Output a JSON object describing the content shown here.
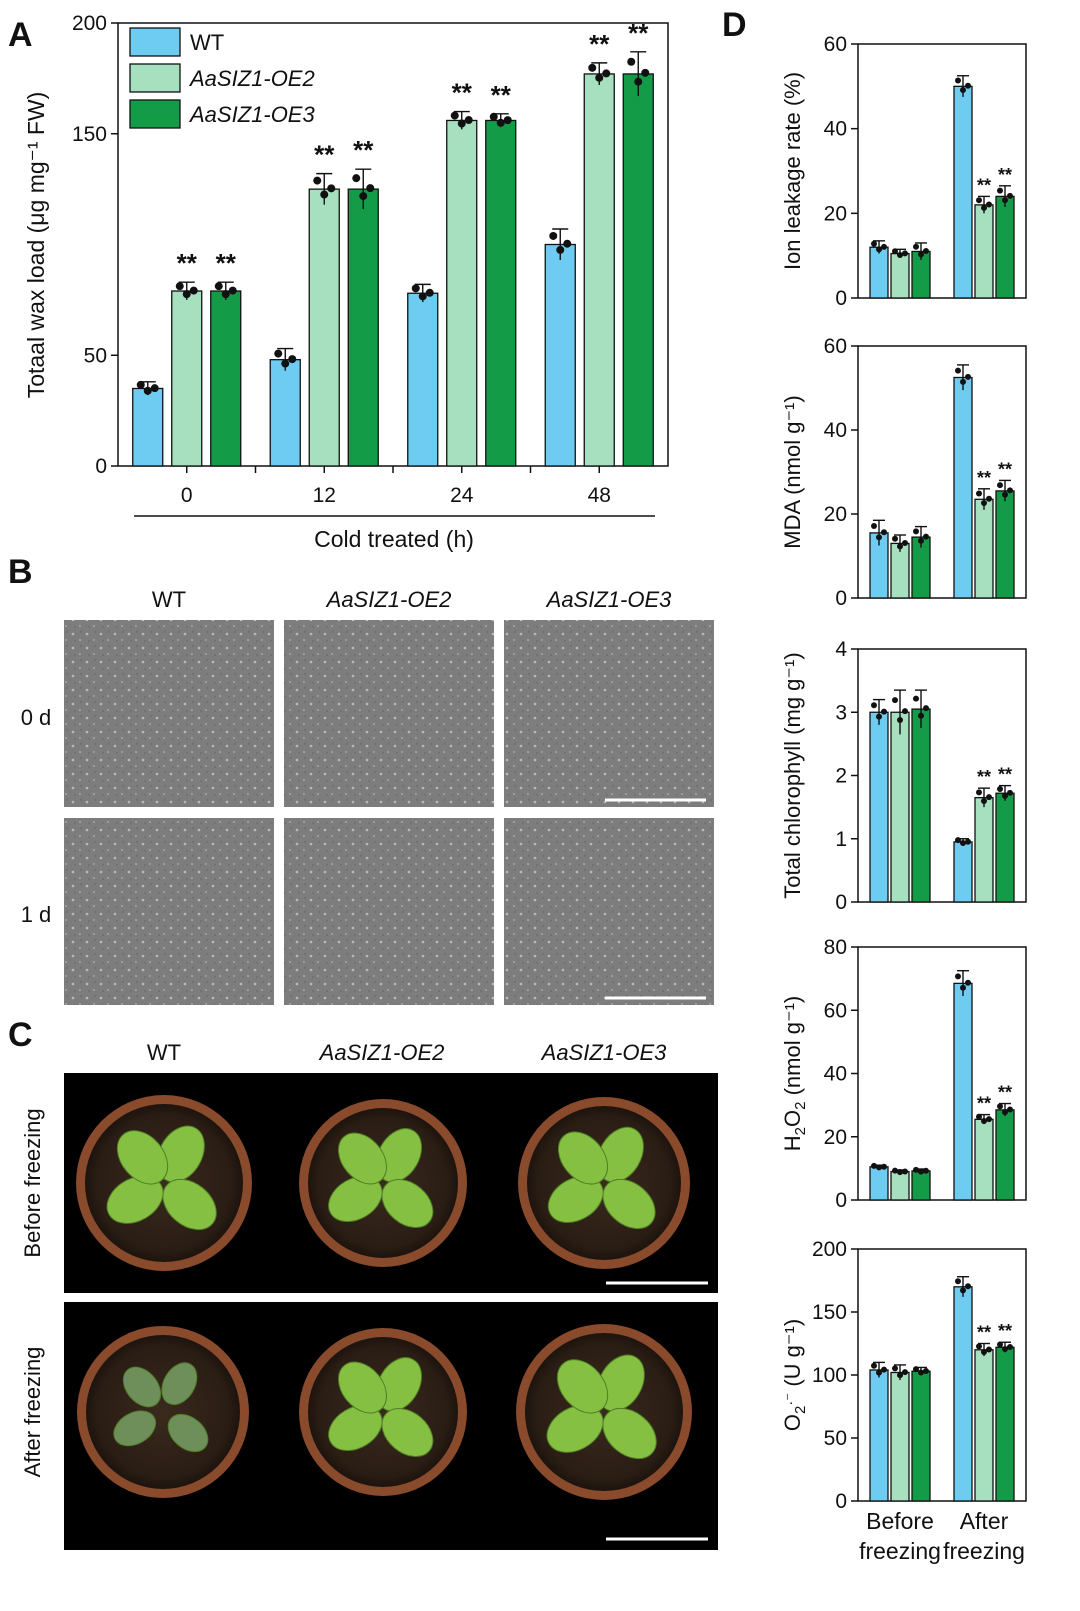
{
  "colors": {
    "wt": "#6ECCF3",
    "oe2": "#A6E0BE",
    "oe3": "#149B48"
  },
  "panel_labels": {
    "a": "A",
    "b": "B",
    "c": "C",
    "d": "D"
  },
  "panel_b": {
    "cols": [
      "WT",
      "AaSIZ1-OE2",
      "AaSIZ1-OE3"
    ],
    "rows": [
      "0 d",
      "1 d"
    ]
  },
  "panel_c": {
    "cols": [
      "WT",
      "AaSIZ1-OE2",
      "AaSIZ1-OE3"
    ],
    "rows": [
      "Before freezing",
      "After freezing"
    ]
  },
  "chart_data": [
    {
      "id": "A",
      "type": "bar",
      "xlabel": "Cold treated (h)",
      "ylabel": "Totaal wax load (μg mg⁻¹ FW)",
      "categories": [
        "0",
        "12",
        "24",
        "48"
      ],
      "yticks": [
        0,
        50,
        150,
        200
      ],
      "ylim": [
        0,
        200
      ],
      "legend": [
        "WT",
        "AaSIZ1-OE2",
        "AaSIZ1-OE3"
      ],
      "series": [
        {
          "name": "WT",
          "values": [
            35,
            48,
            78,
            100
          ],
          "err": [
            3,
            5,
            4,
            7
          ]
        },
        {
          "name": "AaSIZ1-OE2",
          "values": [
            79,
            125,
            156,
            177
          ],
          "err": [
            4,
            7,
            4,
            5
          ]
        },
        {
          "name": "AaSIZ1-OE3",
          "values": [
            79,
            125,
            156,
            177
          ],
          "err": [
            4,
            9,
            3,
            10
          ]
        }
      ],
      "significance": [
        [
          "",
          "",
          "",
          ""
        ],
        [
          "**",
          "**",
          "**",
          "**"
        ],
        [
          "**",
          "**",
          "**",
          "**"
        ]
      ]
    },
    {
      "id": "D1",
      "type": "bar",
      "ylabel": "Ion leakage rate (%)",
      "categories": [
        "Before freezing",
        "After freezing"
      ],
      "yticks": [
        0,
        20,
        40,
        60
      ],
      "ylim": [
        0,
        60
      ],
      "series": [
        {
          "name": "WT",
          "values": [
            12,
            50
          ],
          "err": [
            1.5,
            2.5
          ]
        },
        {
          "name": "AaSIZ1-OE2",
          "values": [
            10.5,
            22
          ],
          "err": [
            1,
            2
          ]
        },
        {
          "name": "AaSIZ1-OE3",
          "values": [
            11,
            24
          ],
          "err": [
            2,
            2.5
          ]
        }
      ],
      "significance": [
        [
          "",
          ""
        ],
        [
          "",
          "**"
        ],
        [
          "",
          "**"
        ]
      ]
    },
    {
      "id": "D2",
      "type": "bar",
      "ylabel": "MDA (nmol g⁻¹)",
      "categories": [
        "Before freezing",
        "After freezing"
      ],
      "yticks": [
        0,
        20,
        40,
        60
      ],
      "ylim": [
        0,
        60
      ],
      "series": [
        {
          "name": "WT",
          "values": [
            15.5,
            52.5
          ],
          "err": [
            3,
            3
          ]
        },
        {
          "name": "AaSIZ1-OE2",
          "values": [
            13,
            23.5
          ],
          "err": [
            2,
            2.5
          ]
        },
        {
          "name": "AaSIZ1-OE3",
          "values": [
            14.5,
            25.5
          ],
          "err": [
            2.5,
            2.5
          ]
        }
      ],
      "significance": [
        [
          "",
          ""
        ],
        [
          "",
          "**"
        ],
        [
          "",
          "**"
        ]
      ]
    },
    {
      "id": "D3",
      "type": "bar",
      "ylabel": "Total chlorophyll (mg g⁻¹)",
      "categories": [
        "Before freezing",
        "After freezing"
      ],
      "yticks": [
        0,
        1,
        2,
        3,
        4
      ],
      "ylim": [
        0,
        4
      ],
      "series": [
        {
          "name": "WT",
          "values": [
            3.0,
            0.95
          ],
          "err": [
            0.2,
            0.05
          ]
        },
        {
          "name": "AaSIZ1-OE2",
          "values": [
            3.0,
            1.65
          ],
          "err": [
            0.35,
            0.15
          ]
        },
        {
          "name": "AaSIZ1-OE3",
          "values": [
            3.05,
            1.72
          ],
          "err": [
            0.3,
            0.12
          ]
        }
      ],
      "significance": [
        [
          "",
          ""
        ],
        [
          "",
          "**"
        ],
        [
          "",
          "**"
        ]
      ]
    },
    {
      "id": "D4",
      "type": "bar",
      "ylabel_main": "H",
      "ylabel_sub1": "2",
      "ylabel_mid": "O",
      "ylabel_sub2": "2",
      "ylabel_tail": "  (nmol g⁻¹)",
      "categories": [
        "Before freezing",
        "After freezing"
      ],
      "yticks": [
        0,
        20,
        40,
        60,
        80
      ],
      "ylim": [
        0,
        80
      ],
      "series": [
        {
          "name": "WT",
          "values": [
            10.5,
            68.5
          ],
          "err": [
            0.5,
            4
          ]
        },
        {
          "name": "AaSIZ1-OE2",
          "values": [
            9,
            25.5
          ],
          "err": [
            0.5,
            1.5
          ]
        },
        {
          "name": "AaSIZ1-OE3",
          "values": [
            9.2,
            28.5
          ],
          "err": [
            0.6,
            2
          ]
        }
      ],
      "significance": [
        [
          "",
          ""
        ],
        [
          "",
          "**"
        ],
        [
          "",
          "**"
        ]
      ]
    },
    {
      "id": "D5",
      "type": "bar",
      "ylabel_main": "O",
      "ylabel_sub1": "2",
      "ylabel_sup": "·⁻",
      "ylabel_tail": " (U g⁻¹)",
      "categories": [
        "Before freezing",
        "After freezing"
      ],
      "xtick_lines": [
        [
          "Before",
          "freezing"
        ],
        [
          "After",
          "freezing"
        ]
      ],
      "yticks": [
        0,
        50,
        100,
        150,
        200
      ],
      "ylim": [
        0,
        200
      ],
      "series": [
        {
          "name": "WT",
          "values": [
            104,
            170
          ],
          "err": [
            6,
            8
          ]
        },
        {
          "name": "AaSIZ1-OE2",
          "values": [
            102,
            120
          ],
          "err": [
            6,
            5
          ]
        },
        {
          "name": "AaSIZ1-OE3",
          "values": [
            103,
            122
          ],
          "err": [
            3,
            4
          ]
        }
      ],
      "significance": [
        [
          "",
          ""
        ],
        [
          "",
          "**"
        ],
        [
          "",
          "**"
        ]
      ]
    }
  ]
}
